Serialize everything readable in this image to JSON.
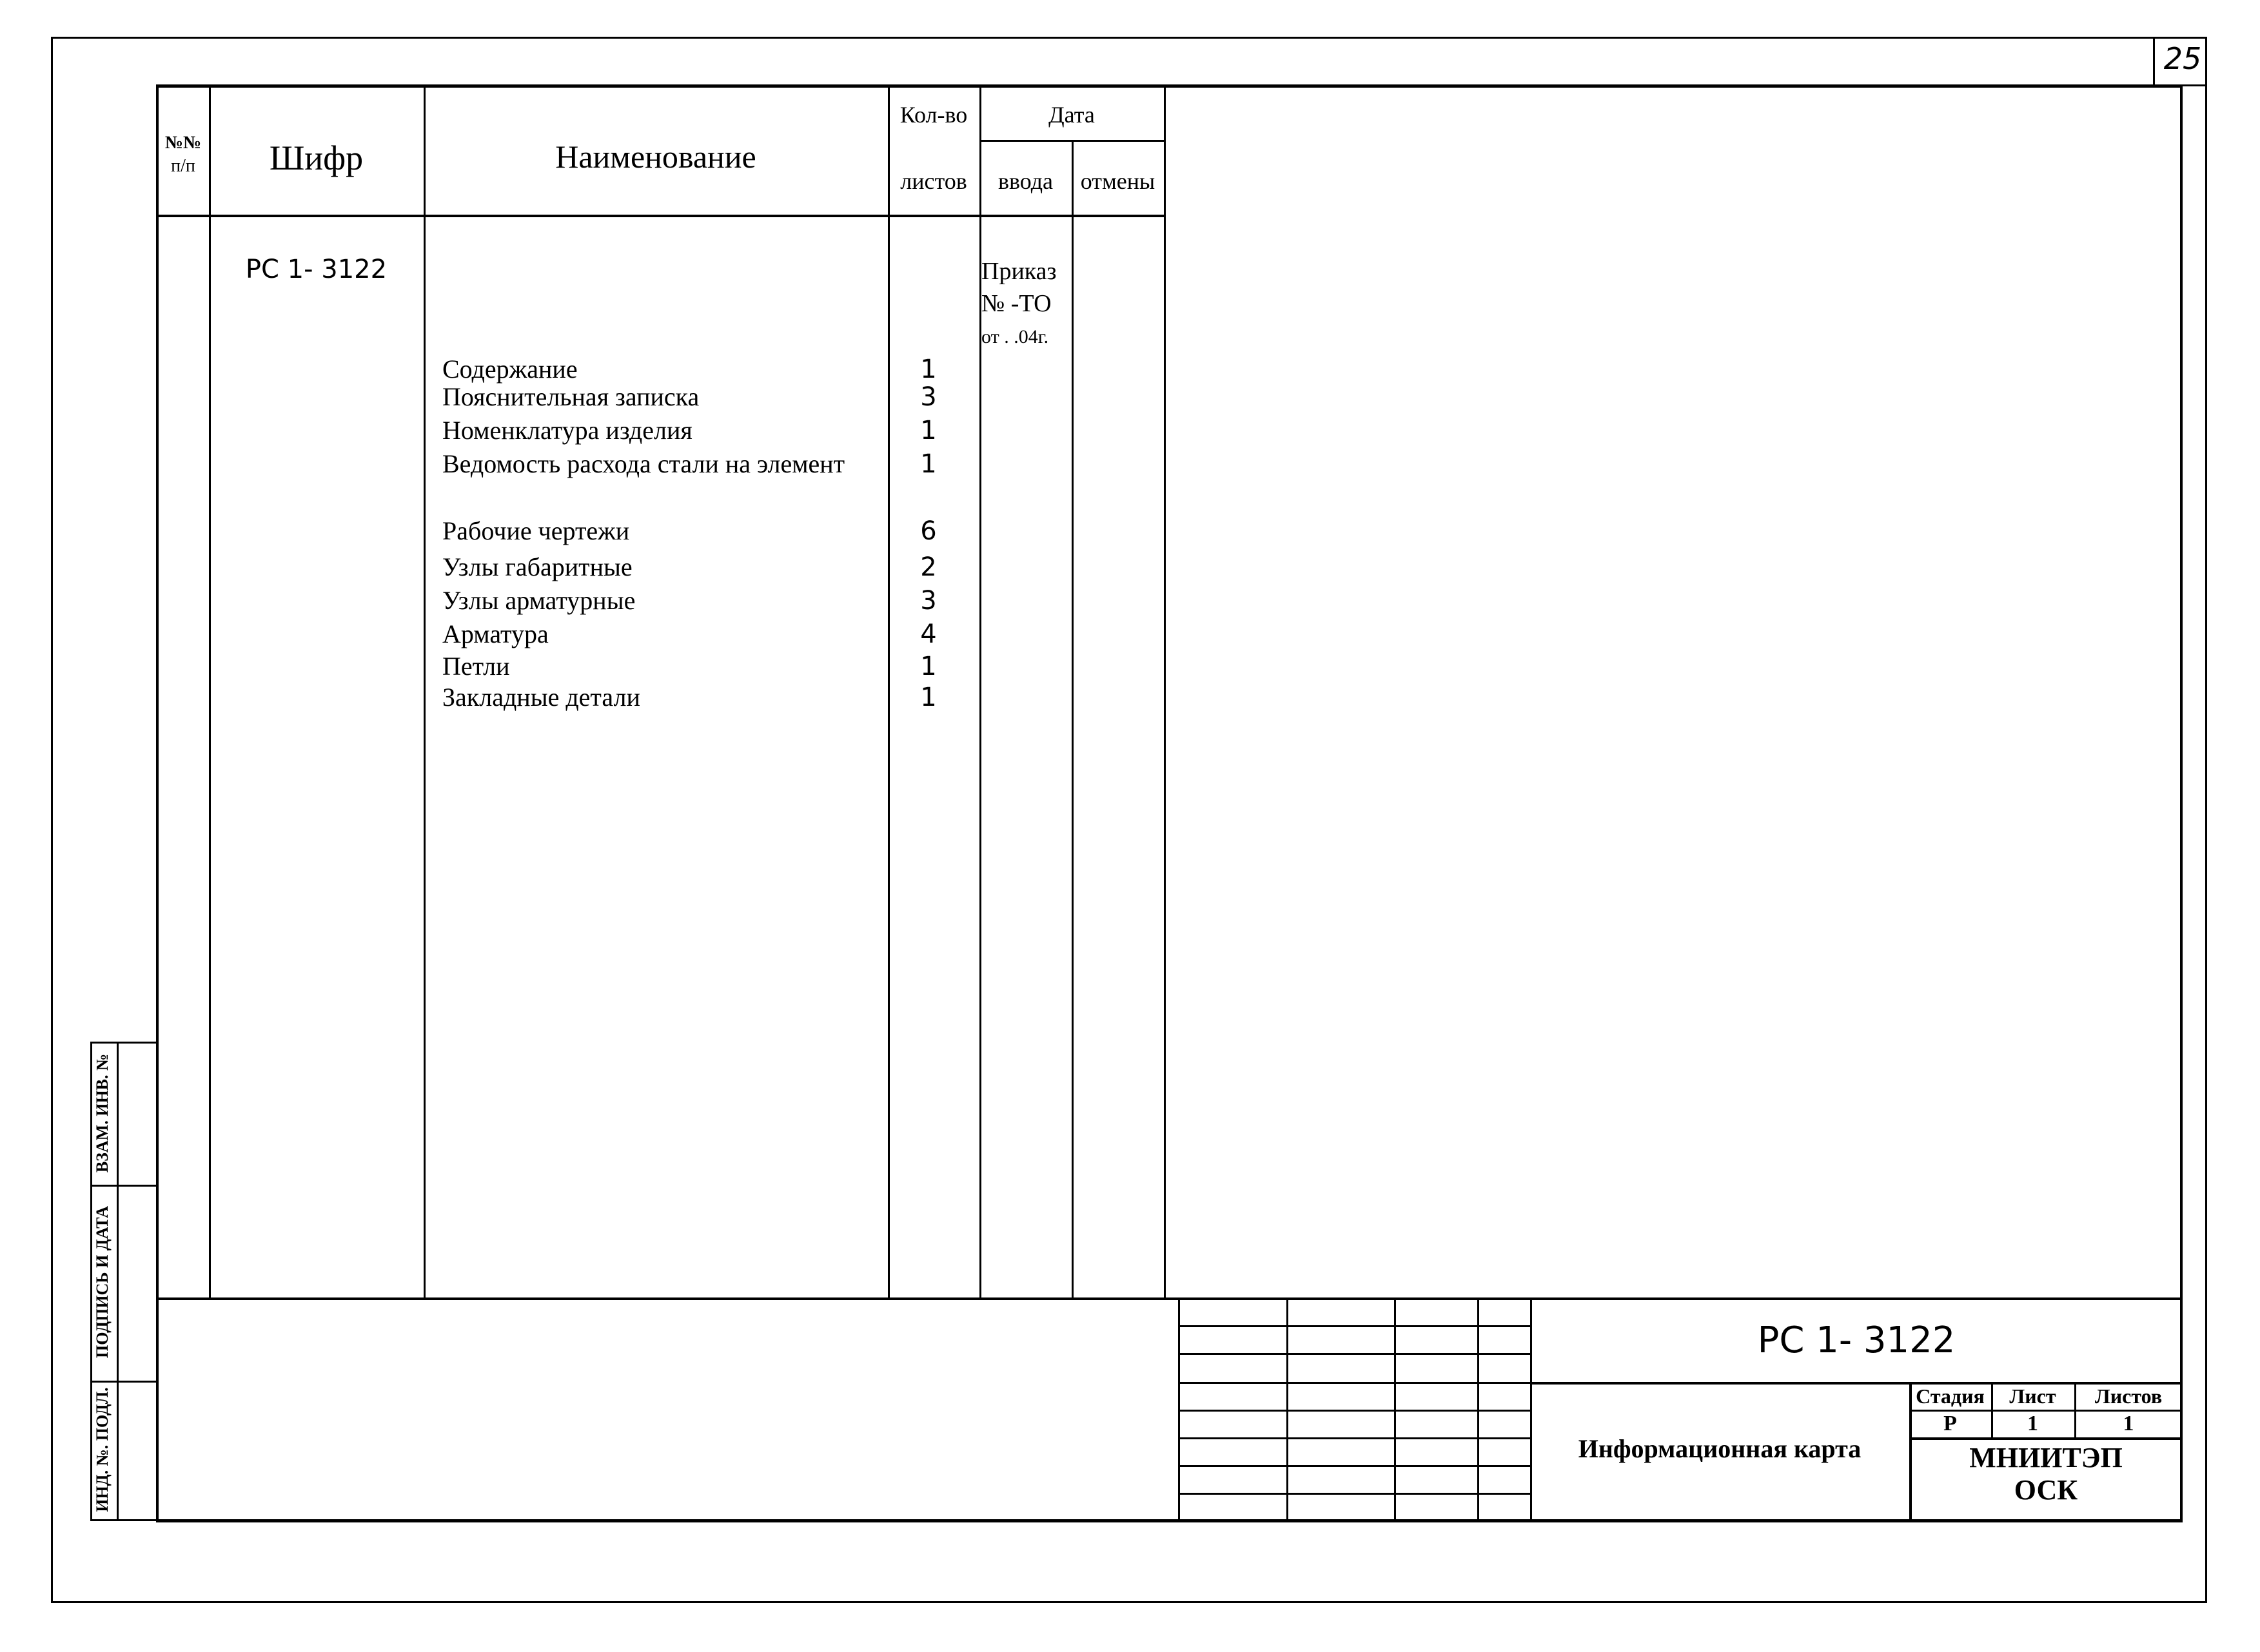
{
  "page_number": "25",
  "table": {
    "headers": {
      "num": "№№ п/п",
      "num_line1": "№№",
      "num_line2": "п/п",
      "code": "Шифр",
      "name": "Наименование",
      "count_top": "Кол-во",
      "count_bottom": "листов",
      "date": "Дата",
      "date_in": "ввода",
      "date_cancel": "отмены"
    },
    "code_value": "РС 1- 3122",
    "order": [
      "Приказ",
      "№ -ТО",
      "от   .  .04г."
    ],
    "rows": [
      {
        "name": "Содержание",
        "sheets": "1"
      },
      {
        "name": "Пояснительная записка",
        "sheets": "3"
      },
      {
        "name": "Номенклатура изделия",
        "sheets": "1"
      },
      {
        "name": "Ведомость расхода стали на элемент",
        "sheets": "1"
      },
      {
        "name": "Рабочие чертежи",
        "sheets": "6"
      },
      {
        "name": "Узлы габаритные",
        "sheets": "2"
      },
      {
        "name": "Узлы арматурные",
        "sheets": "3"
      },
      {
        "name": "Арматура",
        "sheets": "4"
      },
      {
        "name": "Петли",
        "sheets": "1"
      },
      {
        "name": "Закладные детали",
        "sheets": "1"
      }
    ]
  },
  "side_stamp": [
    "ВЗАМ. ИНВ. №",
    "ПОДПИСЬ И ДАТА",
    "ИНД. №. ПОДЛ."
  ],
  "title_block": {
    "code": "РС 1- 3122",
    "title": "Информационная карта",
    "stage_label": "Стадия",
    "sheet_label": "Лист",
    "sheets_label": "Листов",
    "stage": "Р",
    "sheet": "1",
    "sheets": "1",
    "org_line1": "МНИИТЭП",
    "org_line2": "ОСК"
  }
}
